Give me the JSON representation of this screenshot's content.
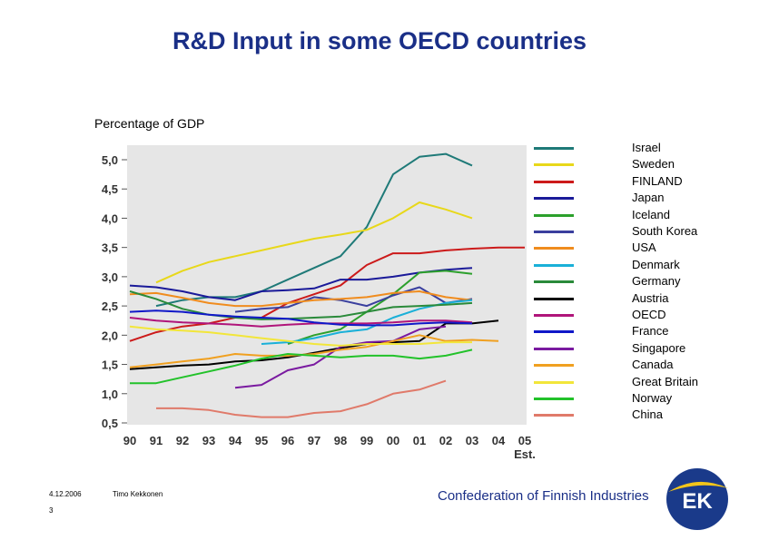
{
  "title": "R&D Input in some OECD countries",
  "subtitle": "Percentage of GDP",
  "footer": {
    "date": "4.12.2006",
    "page": "3",
    "author": "Timo Kekkonen",
    "organization": "Confederation of Finnish Industries",
    "logo_text": "EK"
  },
  "chart_data": {
    "type": "line",
    "title": "R&D Input in some OECD countries",
    "ylabel": "Percentage of GDP",
    "xlabel": "",
    "categories": [
      "90",
      "91",
      "92",
      "93",
      "94",
      "95",
      "96",
      "97",
      "98",
      "99",
      "00",
      "01",
      "02",
      "03",
      "04",
      "05"
    ],
    "category_note": "Est.",
    "ylim": [
      0.5,
      5.0
    ],
    "yticks": [
      "5,0",
      "4,5",
      "4,0",
      "3,5",
      "3,0",
      "2,5",
      "2,0",
      "1,5",
      "1,0",
      "0,5"
    ],
    "ytick_values": [
      5.0,
      4.5,
      4.0,
      3.5,
      3.0,
      2.5,
      2.0,
      1.5,
      1.0,
      0.5
    ],
    "grid": false,
    "legend_position": "right",
    "series": [
      {
        "name": "Israel",
        "color": "#1f7a78",
        "values": [
          null,
          2.5,
          2.6,
          2.65,
          2.65,
          2.75,
          2.95,
          3.15,
          3.35,
          3.85,
          4.75,
          5.05,
          5.1,
          4.9,
          null,
          null
        ]
      },
      {
        "name": "Sweden",
        "color": "#e8d81a",
        "values": [
          null,
          2.9,
          3.1,
          3.25,
          3.35,
          3.45,
          3.55,
          3.65,
          3.72,
          3.8,
          4.0,
          4.27,
          4.15,
          4.0,
          null,
          null
        ]
      },
      {
        "name": "FINLAND",
        "color": "#cc1a1a",
        "values": [
          1.9,
          2.05,
          2.15,
          2.2,
          2.3,
          2.3,
          2.55,
          2.7,
          2.85,
          3.2,
          3.4,
          3.4,
          3.45,
          3.48,
          3.5,
          3.5
        ]
      },
      {
        "name": "Japan",
        "color": "#1a1a99",
        "values": [
          2.85,
          2.82,
          2.75,
          2.65,
          2.6,
          2.75,
          2.77,
          2.8,
          2.95,
          2.95,
          3.0,
          3.07,
          3.12,
          3.15,
          null,
          null
        ]
      },
      {
        "name": "Iceland",
        "color": "#2ca02c",
        "values": [
          null,
          null,
          null,
          null,
          null,
          null,
          1.85,
          2.0,
          2.1,
          2.4,
          2.7,
          3.07,
          3.1,
          3.05,
          null,
          null
        ]
      },
      {
        "name": "South Korea",
        "color": "#3a3f9e",
        "values": [
          null,
          null,
          null,
          null,
          2.4,
          2.45,
          2.48,
          2.65,
          2.6,
          2.5,
          2.68,
          2.82,
          2.55,
          2.62,
          null,
          null
        ]
      },
      {
        "name": "USA",
        "color": "#f08c1e",
        "values": [
          2.7,
          2.72,
          2.64,
          2.55,
          2.5,
          2.5,
          2.55,
          2.6,
          2.62,
          2.65,
          2.72,
          2.75,
          2.65,
          2.6,
          null,
          null
        ]
      },
      {
        "name": "Denmark",
        "color": "#1ab0d8",
        "values": [
          null,
          null,
          null,
          null,
          null,
          1.85,
          1.88,
          1.95,
          2.05,
          2.1,
          2.3,
          2.45,
          2.55,
          2.6,
          null,
          null
        ]
      },
      {
        "name": "Germany",
        "color": "#2a8a3a",
        "values": [
          2.75,
          2.62,
          2.45,
          2.35,
          2.3,
          2.27,
          2.28,
          2.3,
          2.32,
          2.4,
          2.48,
          2.5,
          2.52,
          2.55,
          null,
          null
        ]
      },
      {
        "name": "Austria",
        "color": "#000000",
        "values": [
          1.42,
          1.45,
          1.48,
          1.5,
          1.55,
          1.57,
          1.62,
          1.7,
          1.78,
          1.85,
          1.88,
          1.9,
          2.2,
          2.2,
          2.25,
          null
        ]
      },
      {
        "name": "OECD",
        "color": "#b0157a",
        "values": [
          2.3,
          2.25,
          2.22,
          2.2,
          2.18,
          2.15,
          2.18,
          2.2,
          2.2,
          2.2,
          2.22,
          2.25,
          2.25,
          2.22,
          null,
          null
        ]
      },
      {
        "name": "France",
        "color": "#1018c8",
        "values": [
          2.4,
          2.42,
          2.4,
          2.35,
          2.32,
          2.3,
          2.28,
          2.22,
          2.18,
          2.17,
          2.17,
          2.2,
          2.22,
          2.2,
          null,
          null
        ]
      },
      {
        "name": "Singapore",
        "color": "#7a1aa0",
        "values": [
          null,
          null,
          null,
          null,
          1.1,
          1.15,
          1.4,
          1.5,
          1.8,
          1.88,
          1.9,
          2.1,
          2.15,
          null,
          null,
          null
        ]
      },
      {
        "name": "Canada",
        "color": "#f0a020",
        "values": [
          1.45,
          1.5,
          1.55,
          1.6,
          1.68,
          1.65,
          1.65,
          1.68,
          1.75,
          1.8,
          1.9,
          2.0,
          1.9,
          1.92,
          1.9,
          null
        ]
      },
      {
        "name": "Great Britain",
        "color": "#f2e63a",
        "values": [
          2.15,
          2.1,
          2.08,
          2.05,
          2.0,
          1.95,
          1.9,
          1.85,
          1.82,
          1.85,
          1.85,
          1.85,
          1.88,
          1.88,
          null,
          null
        ]
      },
      {
        "name": "Norway",
        "color": "#22c22a",
        "values": [
          1.18,
          1.18,
          1.28,
          1.38,
          1.48,
          1.6,
          1.68,
          1.65,
          1.62,
          1.65,
          1.65,
          1.6,
          1.65,
          1.75,
          null,
          null
        ]
      },
      {
        "name": "China",
        "color": "#e07a6a",
        "values": [
          null,
          0.75,
          0.75,
          0.72,
          0.64,
          0.6,
          0.6,
          0.67,
          0.7,
          0.82,
          1.0,
          1.07,
          1.22,
          null,
          null,
          null
        ]
      }
    ]
  },
  "colors": {
    "title": "#1a2f87",
    "plot_background": "#e6e6e6",
    "organization": "#1a2f87",
    "logo_blue": "#1a3a8a",
    "logo_yellow": "#f2c51a"
  }
}
